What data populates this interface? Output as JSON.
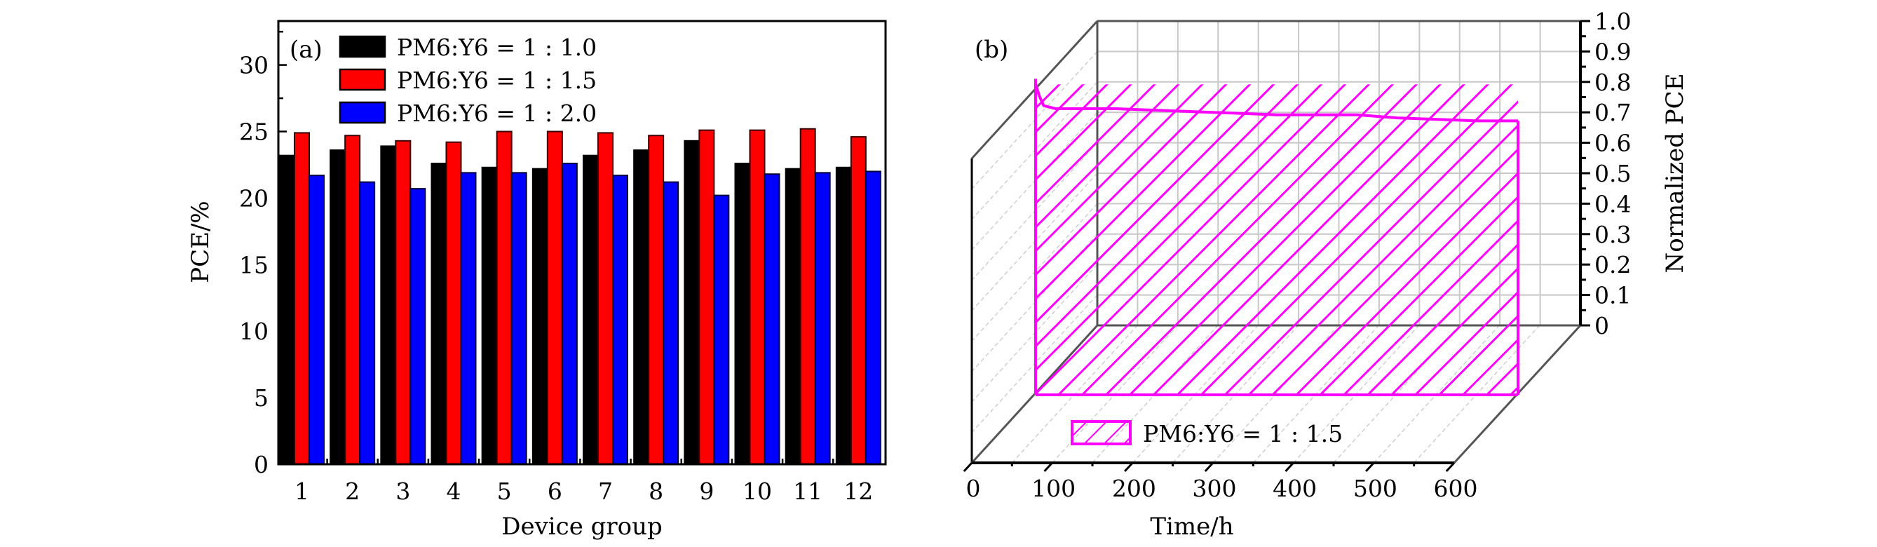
{
  "chart_data": [
    {
      "panel": "(a)",
      "type": "bar",
      "xlabel": "Device group",
      "ylabel": "PCE/%",
      "ylim": [
        0,
        33.3
      ],
      "yticks": [
        0,
        5,
        10,
        15,
        20,
        25,
        30
      ],
      "yticks_minor_step": 2.5,
      "grid": false,
      "legend_position": "top-left",
      "categories": [
        "1",
        "2",
        "3",
        "4",
        "5",
        "6",
        "7",
        "8",
        "9",
        "10",
        "11",
        "12"
      ],
      "series": [
        {
          "name": "PM6:Y6 = 1 : 1.0",
          "color": "#000000",
          "values": [
            23.2,
            23.6,
            23.9,
            22.6,
            22.3,
            22.2,
            23.2,
            23.6,
            24.3,
            22.6,
            22.2,
            22.3
          ]
        },
        {
          "name": "PM6:Y6 = 1 : 1.5",
          "color": "#ff0000",
          "values": [
            24.9,
            24.7,
            24.3,
            24.2,
            25.0,
            25.0,
            24.9,
            24.7,
            25.1,
            25.1,
            25.2,
            24.6
          ]
        },
        {
          "name": "PM6:Y6 = 1 : 2.0",
          "color": "#0000ff",
          "values": [
            21.7,
            21.2,
            20.7,
            21.9,
            21.9,
            22.6,
            21.7,
            21.2,
            20.2,
            21.8,
            21.9,
            22.0
          ]
        }
      ]
    },
    {
      "panel": "(b)",
      "type": "area",
      "style": "3d-ribbon-hatched",
      "xlabel": "Time/h",
      "ylabel": "Normalized PCE",
      "xlim": [
        0,
        600
      ],
      "xticks": [
        0,
        100,
        200,
        300,
        400,
        500,
        600
      ],
      "ylim": [
        0,
        1.0
      ],
      "yticks": [
        "0",
        "0.1",
        "0.2",
        "0.3",
        "0.4",
        "0.5",
        "0.6",
        "0.7",
        "0.8",
        "0.9",
        "1.0"
      ],
      "grid": true,
      "legend_position": "bottom-left",
      "series": [
        {
          "name": "PM6:Y6 = 1 : 1.5",
          "color": "#ff00ff",
          "x": [
            0,
            5,
            10,
            25,
            50,
            100,
            150,
            200,
            250,
            300,
            350,
            400,
            450,
            500,
            550,
            600
          ],
          "y": [
            1.02,
            0.98,
            0.95,
            0.94,
            0.94,
            0.94,
            0.935,
            0.93,
            0.925,
            0.92,
            0.92,
            0.92,
            0.91,
            0.905,
            0.9,
            0.9
          ]
        }
      ]
    }
  ]
}
